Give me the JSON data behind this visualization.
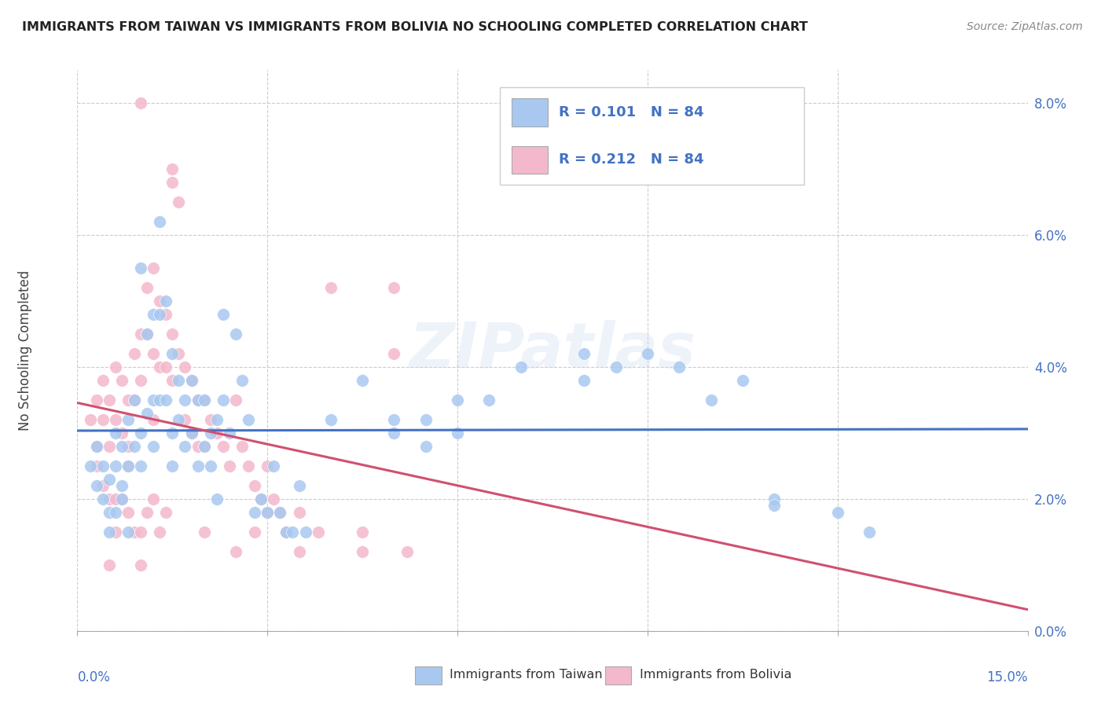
{
  "title": "IMMIGRANTS FROM TAIWAN VS IMMIGRANTS FROM BOLIVIA NO SCHOOLING COMPLETED CORRELATION CHART",
  "source": "Source: ZipAtlas.com",
  "ylabel": "No Schooling Completed",
  "xlim": [
    0.0,
    15.0
  ],
  "ylim": [
    0.0,
    8.5
  ],
  "ytick_vals": [
    0.0,
    2.0,
    4.0,
    6.0,
    8.0
  ],
  "color_taiwan": "#a8c8f0",
  "color_bolivia": "#f4b8cc",
  "color_taiwan_line": "#4472c4",
  "color_bolivia_line": "#d05070",
  "watermark": "ZIPatlas",
  "taiwan_scatter": [
    [
      0.2,
      2.5
    ],
    [
      0.3,
      2.2
    ],
    [
      0.3,
      2.8
    ],
    [
      0.4,
      2.0
    ],
    [
      0.4,
      2.5
    ],
    [
      0.5,
      2.3
    ],
    [
      0.5,
      1.8
    ],
    [
      0.6,
      3.0
    ],
    [
      0.6,
      2.5
    ],
    [
      0.7,
      2.8
    ],
    [
      0.7,
      2.2
    ],
    [
      0.8,
      3.2
    ],
    [
      0.8,
      2.5
    ],
    [
      0.9,
      3.5
    ],
    [
      0.9,
      2.8
    ],
    [
      1.0,
      5.5
    ],
    [
      1.0,
      3.0
    ],
    [
      1.0,
      2.5
    ],
    [
      1.1,
      4.5
    ],
    [
      1.1,
      3.3
    ],
    [
      1.2,
      4.8
    ],
    [
      1.2,
      3.5
    ],
    [
      1.2,
      2.8
    ],
    [
      1.3,
      6.2
    ],
    [
      1.3,
      4.8
    ],
    [
      1.3,
      3.5
    ],
    [
      1.4,
      5.0
    ],
    [
      1.4,
      3.5
    ],
    [
      1.5,
      4.2
    ],
    [
      1.5,
      3.0
    ],
    [
      1.5,
      2.5
    ],
    [
      1.6,
      3.8
    ],
    [
      1.6,
      3.2
    ],
    [
      1.7,
      3.5
    ],
    [
      1.7,
      2.8
    ],
    [
      1.8,
      3.8
    ],
    [
      1.8,
      3.0
    ],
    [
      1.9,
      3.5
    ],
    [
      1.9,
      2.5
    ],
    [
      2.0,
      3.5
    ],
    [
      2.0,
      2.8
    ],
    [
      2.1,
      3.0
    ],
    [
      2.1,
      2.5
    ],
    [
      2.2,
      3.2
    ],
    [
      2.2,
      2.0
    ],
    [
      2.3,
      4.8
    ],
    [
      2.3,
      3.5
    ],
    [
      2.4,
      3.0
    ],
    [
      2.5,
      4.5
    ],
    [
      2.6,
      3.8
    ],
    [
      2.7,
      3.2
    ],
    [
      2.8,
      1.8
    ],
    [
      2.9,
      2.0
    ],
    [
      3.0,
      1.8
    ],
    [
      3.1,
      2.5
    ],
    [
      3.2,
      1.8
    ],
    [
      3.3,
      1.5
    ],
    [
      3.4,
      1.5
    ],
    [
      3.5,
      2.2
    ],
    [
      3.6,
      1.5
    ],
    [
      4.0,
      3.2
    ],
    [
      4.5,
      3.8
    ],
    [
      5.0,
      3.2
    ],
    [
      5.0,
      3.0
    ],
    [
      5.5,
      3.2
    ],
    [
      5.5,
      2.8
    ],
    [
      6.0,
      3.5
    ],
    [
      6.0,
      3.0
    ],
    [
      6.5,
      3.5
    ],
    [
      7.0,
      4.0
    ],
    [
      8.0,
      4.2
    ],
    [
      8.0,
      3.8
    ],
    [
      8.5,
      4.0
    ],
    [
      9.0,
      4.2
    ],
    [
      9.5,
      4.0
    ],
    [
      10.0,
      3.5
    ],
    [
      10.5,
      3.8
    ],
    [
      11.0,
      2.0
    ],
    [
      11.0,
      1.9
    ],
    [
      12.0,
      1.8
    ],
    [
      12.5,
      1.5
    ],
    [
      0.5,
      1.5
    ],
    [
      0.6,
      1.8
    ],
    [
      0.7,
      2.0
    ],
    [
      0.8,
      1.5
    ]
  ],
  "bolivia_scatter": [
    [
      0.2,
      3.2
    ],
    [
      0.3,
      3.5
    ],
    [
      0.3,
      2.8
    ],
    [
      0.4,
      3.8
    ],
    [
      0.4,
      3.2
    ],
    [
      0.5,
      3.5
    ],
    [
      0.5,
      2.8
    ],
    [
      0.6,
      4.0
    ],
    [
      0.6,
      3.2
    ],
    [
      0.7,
      3.8
    ],
    [
      0.7,
      3.0
    ],
    [
      0.8,
      3.5
    ],
    [
      0.8,
      2.8
    ],
    [
      0.9,
      4.2
    ],
    [
      0.9,
      3.5
    ],
    [
      1.0,
      8.0
    ],
    [
      1.0,
      4.5
    ],
    [
      1.0,
      3.8
    ],
    [
      1.1,
      5.2
    ],
    [
      1.1,
      4.5
    ],
    [
      1.2,
      5.5
    ],
    [
      1.2,
      4.2
    ],
    [
      1.3,
      5.0
    ],
    [
      1.3,
      4.0
    ],
    [
      1.4,
      4.8
    ],
    [
      1.4,
      4.0
    ],
    [
      1.5,
      7.0
    ],
    [
      1.5,
      4.5
    ],
    [
      1.5,
      3.8
    ],
    [
      1.6,
      6.5
    ],
    [
      1.6,
      4.2
    ],
    [
      1.7,
      4.0
    ],
    [
      1.7,
      3.2
    ],
    [
      1.8,
      3.8
    ],
    [
      1.8,
      3.0
    ],
    [
      1.9,
      3.5
    ],
    [
      1.9,
      2.8
    ],
    [
      2.0,
      3.5
    ],
    [
      2.0,
      2.8
    ],
    [
      2.1,
      3.2
    ],
    [
      2.2,
      3.0
    ],
    [
      2.3,
      2.8
    ],
    [
      2.4,
      2.5
    ],
    [
      2.5,
      3.5
    ],
    [
      2.6,
      2.8
    ],
    [
      2.7,
      2.5
    ],
    [
      2.8,
      2.2
    ],
    [
      2.9,
      2.0
    ],
    [
      3.0,
      2.5
    ],
    [
      3.0,
      1.8
    ],
    [
      3.1,
      2.0
    ],
    [
      3.2,
      1.8
    ],
    [
      3.3,
      1.5
    ],
    [
      3.5,
      1.8
    ],
    [
      3.8,
      1.5
    ],
    [
      4.0,
      5.2
    ],
    [
      4.5,
      1.5
    ],
    [
      5.0,
      5.2
    ],
    [
      5.0,
      4.2
    ],
    [
      0.5,
      1.0
    ],
    [
      0.6,
      1.5
    ],
    [
      0.7,
      2.0
    ],
    [
      0.8,
      1.8
    ],
    [
      0.9,
      1.5
    ],
    [
      1.0,
      1.5
    ],
    [
      1.1,
      1.8
    ],
    [
      1.2,
      2.0
    ],
    [
      1.3,
      1.5
    ],
    [
      1.4,
      1.8
    ],
    [
      2.0,
      1.5
    ],
    [
      2.5,
      1.2
    ],
    [
      2.8,
      1.5
    ],
    [
      3.5,
      1.2
    ],
    [
      4.5,
      1.2
    ],
    [
      5.2,
      1.2
    ],
    [
      1.0,
      1.0
    ],
    [
      0.3,
      2.5
    ],
    [
      0.5,
      2.0
    ],
    [
      0.4,
      2.2
    ],
    [
      0.6,
      2.0
    ],
    [
      0.8,
      2.5
    ],
    [
      1.2,
      3.2
    ],
    [
      1.5,
      6.8
    ]
  ]
}
